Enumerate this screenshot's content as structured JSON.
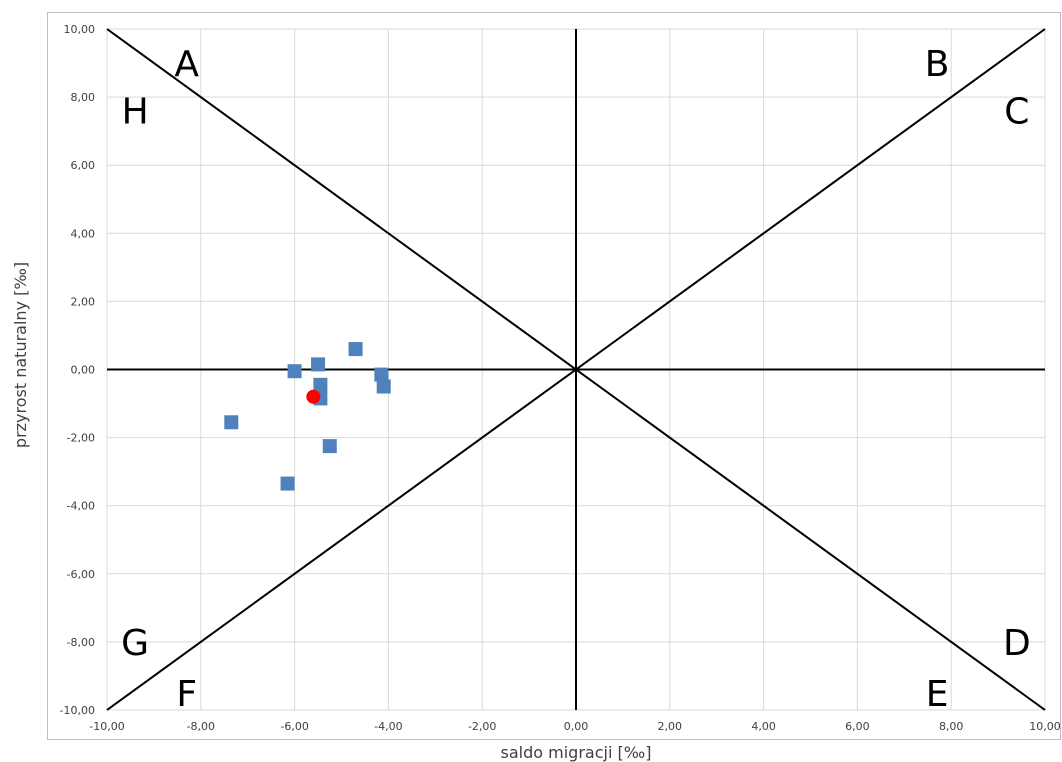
{
  "chart_data": {
    "type": "scatter",
    "xlabel": "saldo migracji [‰]",
    "ylabel": "przyrost naturalny [‰]",
    "xlim": [
      -10,
      10
    ],
    "ylim": [
      -10,
      10
    ],
    "x_ticks": [
      "-10,00",
      "-8,00",
      "-6,00",
      "-4,00",
      "-2,00",
      "0,00",
      "2,00",
      "4,00",
      "6,00",
      "8,00",
      "10,00"
    ],
    "y_ticks": [
      "10,00",
      "8,00",
      "6,00",
      "4,00",
      "2,00",
      "0,00",
      "-2,00",
      "-4,00",
      "-6,00",
      "-8,00",
      "-10,00"
    ],
    "grid": true,
    "series": [
      {
        "marker": "square",
        "color": "#4f81bd",
        "points": [
          {
            "x": -7.35,
            "y": -1.55
          },
          {
            "x": -6.15,
            "y": -3.35
          },
          {
            "x": -6.0,
            "y": -0.05
          },
          {
            "x": -5.5,
            "y": 0.15
          },
          {
            "x": -5.45,
            "y": -0.45
          },
          {
            "x": -5.45,
            "y": -0.85
          },
          {
            "x": -5.25,
            "y": -2.25
          },
          {
            "x": -4.7,
            "y": 0.6
          },
          {
            "x": -4.15,
            "y": -0.15
          },
          {
            "x": -4.1,
            "y": -0.5
          }
        ]
      },
      {
        "marker": "circle",
        "color": "#ff0000",
        "points": [
          {
            "x": -5.6,
            "y": -0.8
          }
        ]
      }
    ],
    "reference_lines": [
      {
        "from": [
          -10,
          10
        ],
        "to": [
          10,
          -10
        ]
      },
      {
        "from": [
          -10,
          -10
        ],
        "to": [
          10,
          10
        ]
      },
      {
        "from": [
          -10,
          0
        ],
        "to": [
          10,
          0
        ]
      },
      {
        "from": [
          0,
          -10
        ],
        "to": [
          0,
          10
        ]
      }
    ],
    "region_labels": [
      {
        "text": "A",
        "x": -8.3,
        "y": 9.0
      },
      {
        "text": "B",
        "x": 7.7,
        "y": 9.0
      },
      {
        "text": "C",
        "x": 9.4,
        "y": 7.6
      },
      {
        "text": "D",
        "x": 9.4,
        "y": -8.0
      },
      {
        "text": "E",
        "x": 7.7,
        "y": -9.5
      },
      {
        "text": "F",
        "x": -8.3,
        "y": -9.5
      },
      {
        "text": "G",
        "x": -9.4,
        "y": -8.0
      },
      {
        "text": "H",
        "x": -9.4,
        "y": 7.6
      }
    ]
  }
}
